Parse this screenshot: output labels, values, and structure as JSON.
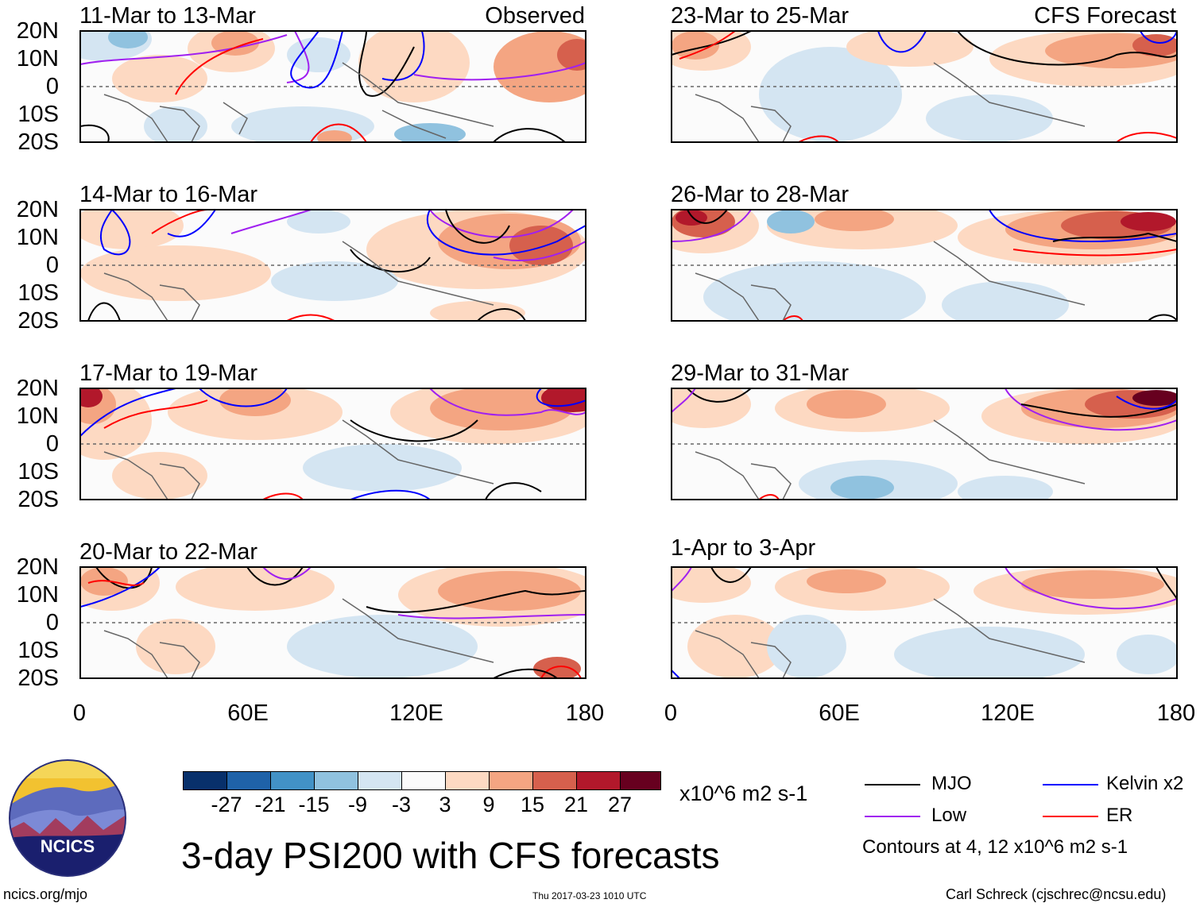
{
  "panels": {
    "p1": {
      "title": "11-Mar to 13-Mar",
      "tag": "Observed"
    },
    "p2": {
      "title": "14-Mar to 16-Mar"
    },
    "p3": {
      "title": "17-Mar to 19-Mar"
    },
    "p4": {
      "title": "20-Mar to 22-Mar"
    },
    "p5": {
      "title": "23-Mar to 25-Mar",
      "tag": "CFS Forecast"
    },
    "p6": {
      "title": "26-Mar to 28-Mar"
    },
    "p7": {
      "title": "29-Mar to 31-Mar"
    },
    "p8": {
      "title": "1-Apr to 3-Apr"
    }
  },
  "lat_labels": [
    "20N",
    "10N",
    "0",
    "10S",
    "20S"
  ],
  "lon_labels": [
    "0",
    "60E",
    "120E",
    "180"
  ],
  "colorbar": {
    "colors": [
      "#08306b",
      "#1f62a8",
      "#4292c6",
      "#90c2df",
      "#d4e5f2",
      "#fbfbfb",
      "#fdd9c2",
      "#f4a582",
      "#d6604d",
      "#b2182b",
      "#67001f"
    ],
    "labels": [
      "-27",
      "-21",
      "-15",
      "-9",
      "-3",
      "3",
      "9",
      "15",
      "21",
      "27"
    ],
    "units": "x10^6 m2 s-1"
  },
  "legend": {
    "mjo": {
      "label": "MJO",
      "color": "#000000"
    },
    "kelvin": {
      "label": "Kelvin x2",
      "color": "#0000ff"
    },
    "low": {
      "label": "Low",
      "color": "#a020f0"
    },
    "er": {
      "label": "ER",
      "color": "#ff0000"
    },
    "note": "Contours at 4, 12 x10^6 m2 s-1"
  },
  "logo": {
    "text": "NCICS"
  },
  "footer": {
    "title": "3-day PSI200 with CFS forecasts",
    "url": "ncics.org/mjo",
    "timestamp": "Thu 2017-03-23 1010 UTC",
    "author": "Carl Schreck (cjschrec@ncsu.edu)"
  }
}
